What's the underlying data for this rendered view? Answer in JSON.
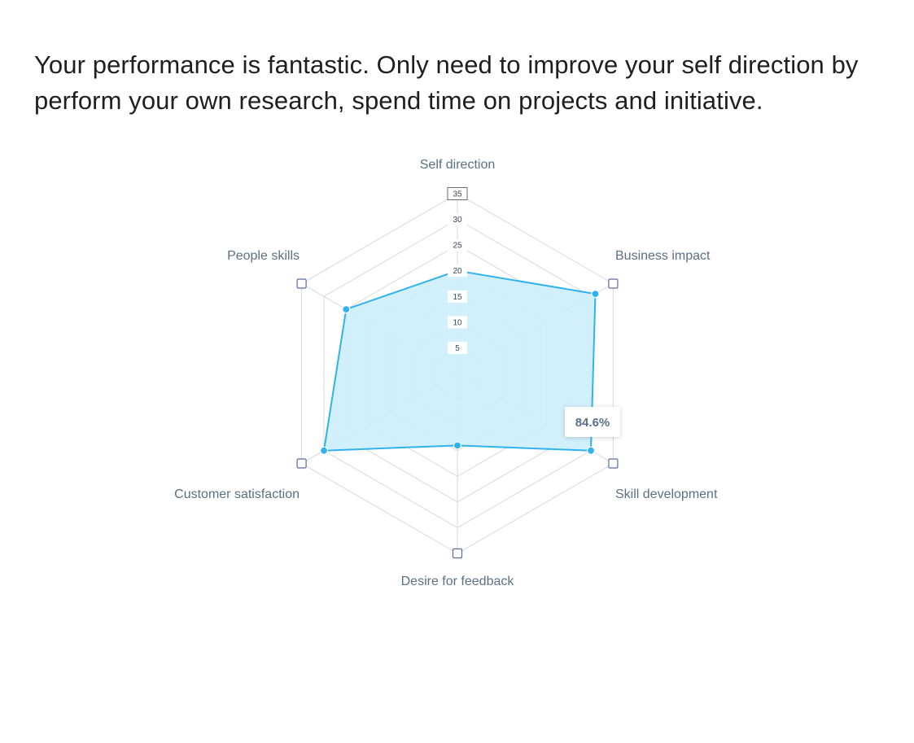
{
  "headline": "Your performance is fantastic. Only need to improve your self direction by perform your own research, spend time on projects and initiative.",
  "tooltip": {
    "text": "84.6%",
    "category": "Skill development"
  },
  "colors": {
    "series_line": "#2fb3ee",
    "series_fill": "#cdeefc",
    "grid": "#d9d9d9",
    "label": "#5a7086",
    "marker_border": "#5a6aa0"
  },
  "chart_data": {
    "type": "radar",
    "categories": [
      "Self direction",
      "Business impact",
      "Skill development",
      "Desire for feedback",
      "Customer satisfaction",
      "People skills"
    ],
    "series": [
      {
        "values": [
          20,
          31,
          30,
          14,
          30,
          25
        ]
      }
    ],
    "rlim": [
      0,
      35
    ],
    "ticks": [
      5,
      10,
      15,
      20,
      25,
      30,
      35
    ],
    "grid": true
  }
}
